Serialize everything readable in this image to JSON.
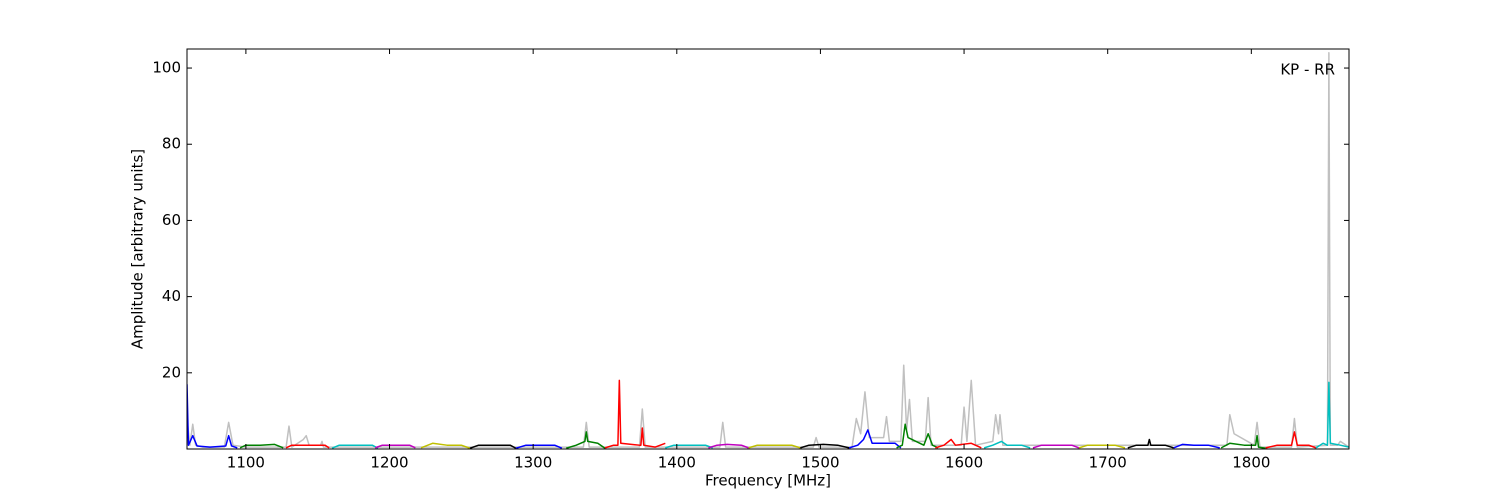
{
  "chart_data": {
    "type": "line",
    "annotation": "KP - RR",
    "xlabel": "Frequency [MHz]",
    "ylabel": "Amplitude [arbitrary units]",
    "xlim": [
      1059,
      1868
    ],
    "ylim": [
      0,
      105
    ],
    "xticks": [
      1100,
      1200,
      1300,
      1400,
      1500,
      1600,
      1700,
      1800
    ],
    "yticks": [
      20,
      40,
      60,
      80,
      100
    ],
    "series": [
      {
        "color": "#c0c0c0",
        "x": [
          1059,
          1061,
          1063,
          1065,
          1070,
          1085,
          1088,
          1091,
          1100,
          1128,
          1130,
          1132,
          1140,
          1142,
          1144,
          1152,
          1153,
          1154,
          1335,
          1337,
          1339,
          1374,
          1376,
          1378,
          1430,
          1432,
          1434,
          1495,
          1497,
          1499,
          1522,
          1525,
          1528,
          1531,
          1534,
          1544,
          1546,
          1548,
          1556,
          1558,
          1560,
          1562,
          1564,
          1573,
          1575,
          1577,
          1598,
          1600,
          1602,
          1605,
          1608,
          1620,
          1622,
          1624,
          1625,
          1627,
          1783,
          1785,
          1788,
          1802,
          1804,
          1806,
          1828,
          1830,
          1832,
          1853,
          1854,
          1855,
          1860,
          1862,
          1868
        ],
        "values": [
          8,
          1,
          6.5,
          1,
          0.5,
          0.5,
          7,
          1,
          0.5,
          0.5,
          6,
          0.5,
          2.5,
          3.5,
          1,
          1,
          2,
          0.5,
          0.5,
          7,
          0.5,
          0.5,
          10.5,
          0.5,
          0.5,
          7,
          0.5,
          0.5,
          3,
          0.5,
          0.5,
          8,
          4,
          15,
          3,
          3,
          8.5,
          2,
          2,
          22,
          5,
          13,
          2,
          2,
          13.5,
          1,
          1,
          11,
          2,
          18,
          1,
          2,
          9,
          4,
          9,
          1,
          1,
          9,
          4,
          1,
          7,
          0.5,
          0.5,
          8,
          0.5,
          1,
          104,
          1,
          1,
          2,
          0.5
        ]
      },
      {
        "color": "#0000ff",
        "x": [
          1059,
          1060,
          1063,
          1066,
          1075,
          1086,
          1088,
          1090,
          1094
        ],
        "values": [
          17,
          1,
          3.5,
          0.8,
          0.5,
          0.8,
          3.5,
          0.8,
          0.3
        ]
      },
      {
        "color": "#008000",
        "x": [
          1096,
          1100,
          1110,
          1120,
          1126
        ],
        "values": [
          0.3,
          1,
          1,
          1.2,
          0.3
        ]
      },
      {
        "color": "#ff0000",
        "x": [
          1128,
          1132,
          1145,
          1155,
          1158
        ],
        "values": [
          0.3,
          1,
          1,
          1,
          0.3
        ]
      },
      {
        "color": "#00bfbf",
        "x": [
          1160,
          1165,
          1180,
          1188,
          1192
        ],
        "values": [
          0.2,
          1,
          1,
          1,
          0.2
        ]
      },
      {
        "color": "#bf00bf",
        "x": [
          1190,
          1195,
          1205,
          1214,
          1218
        ],
        "values": [
          0.3,
          1,
          1,
          1,
          0.3
        ]
      },
      {
        "color": "#bfbf00",
        "x": [
          1222,
          1230,
          1240,
          1250,
          1256
        ],
        "values": [
          0.3,
          1.5,
          1,
          1,
          0.2
        ]
      },
      {
        "color": "#000000",
        "x": [
          1256,
          1262,
          1275,
          1284,
          1288
        ],
        "values": [
          0.2,
          1,
          1,
          1,
          0.2
        ]
      },
      {
        "color": "#0000ff",
        "x": [
          1288,
          1295,
          1305,
          1315,
          1320
        ],
        "values": [
          0.2,
          1,
          1,
          1,
          0.2
        ]
      },
      {
        "color": "#008000",
        "x": [
          1323,
          1330,
          1336,
          1337,
          1338,
          1345,
          1350
        ],
        "values": [
          0.2,
          1,
          2,
          4.5,
          2,
          1.5,
          0.2
        ]
      },
      {
        "color": "#ff0000",
        "x": [
          1350,
          1356,
          1359,
          1360,
          1361,
          1374,
          1375,
          1376,
          1377,
          1385,
          1392
        ],
        "values": [
          0.3,
          1,
          1,
          18,
          1.5,
          1,
          1,
          5.5,
          1,
          0.5,
          1.5
        ]
      },
      {
        "color": "#00bfbf",
        "x": [
          1392,
          1398,
          1410,
          1420,
          1425
        ],
        "values": [
          0.3,
          1,
          1,
          1,
          0.3
        ]
      },
      {
        "color": "#bf00bf",
        "x": [
          1422,
          1428,
          1435,
          1445,
          1450
        ],
        "values": [
          0.3,
          1,
          1.2,
          1,
          0.3
        ]
      },
      {
        "color": "#bfbf00",
        "x": [
          1450,
          1456,
          1470,
          1480,
          1486
        ],
        "values": [
          0.3,
          1,
          1,
          1,
          0.3
        ]
      },
      {
        "color": "#000000",
        "x": [
          1486,
          1492,
          1502,
          1512,
          1520
        ],
        "values": [
          0.3,
          1,
          1.2,
          1,
          0.3
        ]
      },
      {
        "color": "#0000ff",
        "x": [
          1520,
          1526,
          1530,
          1533,
          1536,
          1545,
          1552,
          1556
        ],
        "values": [
          0.3,
          1,
          2.5,
          5,
          1.5,
          1.5,
          1.5,
          0.3
        ]
      },
      {
        "color": "#008000",
        "x": [
          1553,
          1557,
          1559,
          1561,
          1572,
          1575,
          1578,
          1582
        ],
        "values": [
          0.3,
          1,
          6.5,
          3,
          1,
          4,
          1,
          0.3
        ]
      },
      {
        "color": "#ff0000",
        "x": [
          1580,
          1586,
          1591,
          1594,
          1605,
          1612
        ],
        "values": [
          0.3,
          1,
          2.5,
          1,
          1.5,
          0.3
        ]
      },
      {
        "color": "#00bfbf",
        "x": [
          1614,
          1620,
          1626,
          1630,
          1640,
          1646
        ],
        "values": [
          0.3,
          1,
          2,
          1,
          1,
          0.3
        ]
      },
      {
        "color": "#bf00bf",
        "x": [
          1648,
          1654,
          1665,
          1675,
          1680
        ],
        "values": [
          0.3,
          1,
          1,
          1,
          0.3
        ]
      },
      {
        "color": "#bfbf00",
        "x": [
          1680,
          1686,
          1695,
          1705,
          1712
        ],
        "values": [
          0.3,
          1,
          1,
          1,
          0.3
        ]
      },
      {
        "color": "#000000",
        "x": [
          1714,
          1720,
          1728,
          1729,
          1730,
          1740,
          1746
        ],
        "values": [
          0.3,
          1,
          1,
          2.5,
          1,
          1,
          0.3
        ]
      },
      {
        "color": "#0000ff",
        "x": [
          1746,
          1752,
          1760,
          1770,
          1778
        ],
        "values": [
          0.3,
          1.2,
          1,
          1,
          0.3
        ]
      },
      {
        "color": "#008000",
        "x": [
          1779,
          1785,
          1795,
          1803,
          1804,
          1805,
          1810
        ],
        "values": [
          0.3,
          1.5,
          1,
          1,
          3.5,
          0.5,
          0.2
        ]
      },
      {
        "color": "#ff0000",
        "x": [
          1810,
          1818,
          1828,
          1830,
          1832,
          1840,
          1845
        ],
        "values": [
          0.3,
          1,
          1,
          4.5,
          1,
          1,
          0.3
        ]
      },
      {
        "color": "#00bfbf",
        "x": [
          1845,
          1850,
          1853,
          1854,
          1855,
          1862,
          1868
        ],
        "values": [
          0.3,
          1.5,
          1,
          17.5,
          1.5,
          1,
          0.5
        ]
      }
    ]
  }
}
